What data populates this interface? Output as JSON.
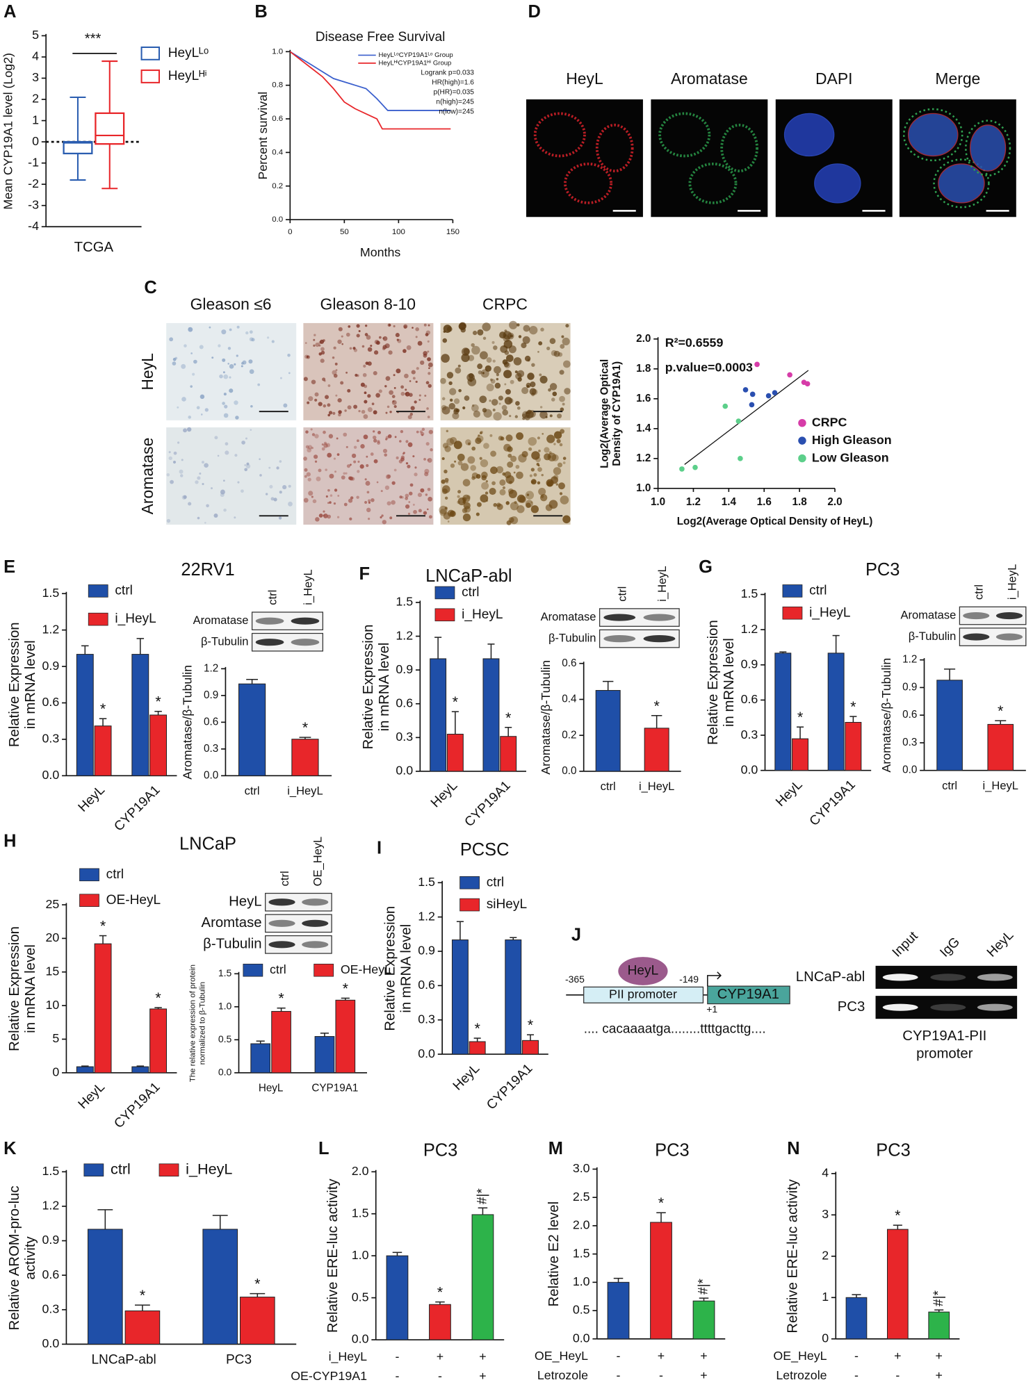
{
  "figure": {
    "C_images": {
      "panel": "C",
      "columns": [
        "Gleason ≤6",
        "Gleason 8-10",
        "CRPC"
      ],
      "rows": [
        "HeyL",
        "Aromatase"
      ]
    },
    "D": {
      "panel": "D",
      "labels": [
        "HeyL",
        "Aromatase",
        "DAPI",
        "Merge"
      ]
    },
    "blots": [
      {
        "lanes": [
          "ctrl",
          "i_HeyL"
        ],
        "bands": [
          "Aromatase",
          "β-Tubulin"
        ]
      },
      {
        "lanes": [
          "ctrl",
          "i_HeyL"
        ],
        "bands": [
          "Aromatase",
          "β-Tubulin"
        ]
      },
      {
        "lanes": [
          "ctrl",
          "i_HeyL"
        ],
        "bands": [
          "Aromatase",
          "β-Tubulin"
        ]
      },
      {
        "lanes": [
          "ctrl",
          "OE_HeyL"
        ],
        "bands": [
          "HeyL",
          "Aromtase",
          "β-Tubulin"
        ]
      }
    ],
    "J": {
      "panel": "J",
      "factor": "HeyL",
      "positions": [
        "-365",
        "-149",
        "+1"
      ],
      "promoter": "PII promoter",
      "gene": "CYP19A1",
      "sequence": ".... cacaaaatga........ttttgacttg....",
      "lanes": [
        "Input",
        "IgG",
        "HeyL"
      ],
      "cells": [
        "LNCaP-abl",
        "PC3"
      ],
      "caption": [
        "CYP19A1-PII",
        "promoter"
      ]
    }
  },
  "chart_data": [
    {
      "type": "box",
      "panel": "A",
      "ylabel": "Mean CYP19A1 level (Log2)",
      "categories": [
        "TCGA"
      ],
      "annotation": "***",
      "reference_line": 0,
      "ylim": [
        -4,
        5
      ],
      "yticks": [
        -4,
        -3,
        -2,
        -1,
        0,
        1,
        2,
        3,
        4,
        5
      ],
      "series": [
        {
          "name": "HeyLᴸᵒ",
          "color": "#2a5db0",
          "min": [
            -1.8
          ],
          "q1": [
            -0.55
          ],
          "median": [
            -0.05
          ],
          "q3": [
            0
          ],
          "max": [
            2.1
          ]
        },
        {
          "name": "HeyLᴴⁱ",
          "color": "#e8262a",
          "min": [
            -2.2
          ],
          "q1": [
            -0.1
          ],
          "median": [
            0.3
          ],
          "q3": [
            1.35
          ],
          "max": [
            3.8
          ]
        }
      ]
    },
    {
      "type": "line",
      "panel": "B",
      "title": "Disease Free Survival",
      "xlabel": "Months",
      "ylabel": "Percent survival",
      "xlim": [
        0,
        150
      ],
      "xticks": [
        0,
        50,
        100,
        150
      ],
      "ylim": [
        0,
        1
      ],
      "yticks": [
        {
          "value": 0,
          "label": "0.0"
        },
        0.2,
        0.4,
        0.6,
        0.8,
        {
          "value": 1,
          "label": "1.0"
        }
      ],
      "annotations": [
        "Logrank p=0.033",
        "HR(high)=1.6",
        "p(HR)=0.035",
        "n(high)=245",
        "n(low)=245"
      ],
      "series": [
        {
          "name": "HeyLᴸᵒCYP19A1ᴸᵒ Group",
          "color": "#3a5fcd",
          "x": [
            0,
            10,
            20,
            30,
            40,
            50,
            60,
            70,
            80,
            90,
            100,
            148
          ],
          "values": [
            1,
            0.96,
            0.92,
            0.88,
            0.84,
            0.82,
            0.8,
            0.78,
            0.72,
            0.65,
            0.65,
            0.65
          ]
        },
        {
          "name": "HeyLᴴⁱCYP19A1ᴴⁱ Group",
          "color": "#e8262a",
          "x": [
            0,
            10,
            20,
            30,
            40,
            50,
            60,
            70,
            80,
            85,
            90,
            100,
            148
          ],
          "values": [
            1,
            0.95,
            0.9,
            0.85,
            0.78,
            0.7,
            0.66,
            0.63,
            0.6,
            0.54,
            0.54,
            0.54,
            0.54
          ]
        }
      ]
    },
    {
      "type": "scatter",
      "annotations": [
        "R²=0.6559",
        "p.value=0.0003"
      ],
      "xlabel": "Log2(Average Optical Density of HeyL)",
      "ylabel": [
        "Log2(Average Optical",
        "Density of CYP19A1)"
      ],
      "xlim": [
        1,
        2
      ],
      "ylim": [
        1,
        2
      ],
      "xticks": [
        {
          "value": 1,
          "label": "1.0"
        },
        1.2,
        1.4,
        1.6,
        1.8,
        {
          "value": 2,
          "label": "2.0"
        }
      ],
      "yticks": [
        {
          "value": 1,
          "label": "1.0"
        },
        1.2,
        1.4,
        1.6,
        1.8,
        {
          "value": 2,
          "label": "2.0"
        }
      ],
      "trendline": {
        "x": [
          1.15,
          1.85
        ],
        "values": [
          1.16,
          1.79
        ]
      },
      "series": [
        {
          "name": "CRPC",
          "color": "#d63ca8",
          "x": [
            1.56,
            1.745,
            1.825,
            1.845
          ],
          "values": [
            1.83,
            1.76,
            1.71,
            1.7
          ]
        },
        {
          "name": "High Gleason",
          "color": "#2a4fb0",
          "x": [
            1.495,
            1.535,
            1.625,
            1.66,
            1.53
          ],
          "values": [
            1.66,
            1.63,
            1.62,
            1.64,
            1.56
          ]
        },
        {
          "name": "Low Gleason",
          "color": "#5ccf8a",
          "x": [
            1.38,
            1.455,
            1.465,
            1.21,
            1.135
          ],
          "values": [
            1.55,
            1.45,
            1.2,
            1.14,
            1.13
          ]
        }
      ]
    },
    {
      "type": "bar",
      "panel": "E",
      "title": "22RV1",
      "ylabel": [
        "Relative Expression",
        "in mRNA level"
      ],
      "categories": [
        "HeyL",
        "CYP19A1"
      ],
      "ylim": [
        0,
        1.5
      ],
      "yticks": [
        {
          "value": 0,
          "label": "0.0"
        },
        0.3,
        0.6,
        0.9,
        1.2,
        1.5
      ],
      "series": [
        {
          "name": "ctrl",
          "color": "#1f4fa8",
          "values": [
            1,
            1
          ],
          "errors": [
            0.07,
            0.13
          ]
        },
        {
          "name": "i_HeyL",
          "color": "#e8262a",
          "values": [
            0.41,
            0.5
          ],
          "errors": [
            0.06,
            0.03
          ],
          "sig": [
            "*",
            "*"
          ]
        }
      ]
    },
    {
      "type": "bar",
      "ylabel": "Aromatase/β-Tubulin",
      "categories": [
        "ctrl",
        "i_HeyL"
      ],
      "ylim": [
        0,
        1.2
      ],
      "yticks": [
        {
          "value": 0,
          "label": "0.0"
        },
        0.3,
        0.6,
        0.9,
        1.2
      ],
      "series": [
        {
          "colors": [
            "#1f4fa8",
            "#e8262a"
          ],
          "values": [
            1.03,
            0.41
          ],
          "errors": [
            0.05,
            0.02
          ],
          "sig": [
            null,
            "*"
          ]
        }
      ]
    },
    {
      "type": "bar",
      "panel": "F",
      "title": "LNCaP-abl",
      "ylabel": [
        "Relative Expression",
        "in mRNA level"
      ],
      "categories": [
        "HeyL",
        "CYP19A1"
      ],
      "ylim": [
        0,
        1.5
      ],
      "yticks": [
        {
          "value": 0,
          "label": "0.0"
        },
        0.3,
        0.6,
        0.9,
        1.2,
        1.5
      ],
      "series": [
        {
          "name": "ctrl",
          "color": "#1f4fa8",
          "values": [
            1,
            1
          ],
          "errors": [
            0.19,
            0.13
          ]
        },
        {
          "name": "i_HeyL",
          "color": "#e8262a",
          "values": [
            0.33,
            0.31
          ],
          "errors": [
            0.2,
            0.08
          ],
          "sig": [
            "*",
            "*"
          ]
        }
      ]
    },
    {
      "type": "bar",
      "ylabel": "Aromatase/β-Tubulin",
      "categories": [
        "ctrl",
        "i_HeyL"
      ],
      "ylim": [
        0,
        0.6
      ],
      "yticks": [
        {
          "value": 0,
          "label": "0.0"
        },
        0.2,
        0.4,
        0.6
      ],
      "series": [
        {
          "colors": [
            "#1f4fa8",
            "#e8262a"
          ],
          "values": [
            0.45,
            0.24
          ],
          "errors": [
            0.05,
            0.07
          ],
          "sig": [
            null,
            "*"
          ]
        }
      ]
    },
    {
      "type": "bar",
      "panel": "G",
      "title": "PC3",
      "ylabel": [
        "Relative Expression",
        "in mRNA level"
      ],
      "categories": [
        "HeyL",
        "CYP19A1"
      ],
      "ylim": [
        0,
        1.5
      ],
      "yticks": [
        {
          "value": 0,
          "label": "0.0"
        },
        0.3,
        0.6,
        0.9,
        1.2,
        1.5
      ],
      "series": [
        {
          "name": "ctrl",
          "color": "#1f4fa8",
          "values": [
            1,
            1
          ],
          "errors": [
            0.01,
            0.15
          ]
        },
        {
          "name": "i_HeyL",
          "color": "#e8262a",
          "values": [
            0.27,
            0.41
          ],
          "errors": [
            0.1,
            0.05
          ],
          "sig": [
            "*",
            "*"
          ]
        }
      ]
    },
    {
      "type": "bar",
      "ylabel": "Aromatase/β-Tubulin",
      "categories": [
        "ctrl",
        "i_HeyL"
      ],
      "ylim": [
        0,
        1.2
      ],
      "yticks": [
        {
          "value": 0,
          "label": "0.0"
        },
        0.3,
        0.6,
        0.9,
        1.2
      ],
      "series": [
        {
          "colors": [
            "#1f4fa8",
            "#e8262a"
          ],
          "values": [
            0.98,
            0.5
          ],
          "errors": [
            0.12,
            0.04
          ],
          "sig": [
            null,
            "*"
          ]
        }
      ]
    },
    {
      "type": "bar",
      "panel": "H",
      "title": "LNCaP",
      "ylabel": [
        "Relative Expression",
        "in mRNA level"
      ],
      "categories": [
        "HeyL",
        "CYP19A1"
      ],
      "ylim": [
        0,
        25
      ],
      "yticks": [
        0,
        5,
        10,
        15,
        20,
        25
      ],
      "series": [
        {
          "name": "ctrl",
          "color": "#1f4fa8",
          "values": [
            0.9,
            0.9
          ],
          "errors": [
            0.1,
            0.1
          ]
        },
        {
          "name": "OE-HeyL",
          "color": "#e8262a",
          "values": [
            19.2,
            9.5
          ],
          "errors": [
            1.2,
            0.2
          ],
          "sig": [
            "*",
            "*"
          ]
        }
      ]
    },
    {
      "type": "bar",
      "ylabel": [
        "The relative expression of protein",
        "normalized to β-Tubulin"
      ],
      "categories": [
        "HeyL",
        "CYP19A1"
      ],
      "ylim": [
        0,
        1.5
      ],
      "yticks": [
        {
          "value": 0,
          "label": "0.0"
        },
        0.5,
        {
          "value": 1,
          "label": "1.0"
        },
        1.5
      ],
      "series": [
        {
          "name": "ctrl",
          "color": "#1f4fa8",
          "values": [
            0.44,
            0.55
          ],
          "errors": [
            0.04,
            0.05
          ]
        },
        {
          "name": "OE-HeyL",
          "color": "#e8262a",
          "values": [
            0.93,
            1.1
          ],
          "errors": [
            0.05,
            0.03
          ],
          "sig": [
            "*",
            "*"
          ]
        }
      ]
    },
    {
      "type": "bar",
      "panel": "I",
      "title": "PCSC",
      "ylabel": [
        "Relative Expression",
        "in mRNA level"
      ],
      "categories": [
        "HeyL",
        "CYP19A1"
      ],
      "ylim": [
        0,
        1.5
      ],
      "yticks": [
        {
          "value": 0,
          "label": "0.0"
        },
        0.3,
        0.6,
        0.9,
        1.2,
        1.5
      ],
      "series": [
        {
          "name": "ctrl",
          "color": "#1f4fa8",
          "values": [
            1,
            1
          ],
          "errors": [
            0.16,
            0.02
          ]
        },
        {
          "name": "siHeyL",
          "color": "#e8262a",
          "values": [
            0.11,
            0.12
          ],
          "errors": [
            0.03,
            0.05
          ],
          "sig": [
            "*",
            "*"
          ]
        }
      ]
    },
    {
      "type": "bar",
      "panel": "K",
      "ylabel": [
        "Relative AROM-pro-luc",
        "activity"
      ],
      "categories": [
        "LNCaP-abl",
        "PC3"
      ],
      "ylim": [
        0,
        1.5
      ],
      "yticks": [
        {
          "value": 0,
          "label": "0.0"
        },
        0.3,
        0.6,
        0.9,
        1.2,
        1.5
      ],
      "series": [
        {
          "name": "ctrl",
          "color": "#1f4fa8",
          "values": [
            1,
            1
          ],
          "errors": [
            0.17,
            0.12
          ]
        },
        {
          "name": "i_HeyL",
          "color": "#e8262a",
          "values": [
            0.29,
            0.41
          ],
          "errors": [
            0.05,
            0.03
          ],
          "sig": [
            "*",
            "*"
          ]
        }
      ]
    },
    {
      "type": "bar",
      "panel": "L",
      "title": "PC3",
      "ylabel": "Relative ERE-luc activity",
      "ylim": [
        0,
        2
      ],
      "yticks": [
        {
          "value": 0,
          "label": "0.0"
        },
        0.5,
        {
          "value": 1,
          "label": "1.0"
        },
        1.5,
        {
          "value": 2,
          "label": "2.0"
        }
      ],
      "series": [
        {
          "colors": [
            "#1f4fa8",
            "#e8262a",
            "#2db34a"
          ],
          "values": [
            1,
            0.42,
            1.49
          ],
          "errors": [
            0.04,
            0.03,
            0.08
          ],
          "sig": [
            null,
            "*",
            "#|*"
          ]
        }
      ],
      "rows": [
        {
          "label": "i_HeyL",
          "marks": [
            "-",
            "+",
            "+"
          ]
        },
        {
          "label": "OE-CYP19A1",
          "marks": [
            "-",
            "-",
            "+"
          ]
        }
      ]
    },
    {
      "type": "bar",
      "panel": "M",
      "title": "PC3",
      "ylabel": "Relative E2 level",
      "ylim": [
        0,
        3
      ],
      "yticks": [
        {
          "value": 0,
          "label": "0.0"
        },
        0.5,
        {
          "value": 1,
          "label": "1.0"
        },
        1.5,
        {
          "value": 2,
          "label": "2.0"
        },
        2.5,
        {
          "value": 3,
          "label": "3.0"
        }
      ],
      "series": [
        {
          "colors": [
            "#1f4fa8",
            "#e8262a",
            "#2db34a"
          ],
          "values": [
            1,
            2.06,
            0.67
          ],
          "errors": [
            0.07,
            0.17,
            0.05
          ],
          "sig": [
            null,
            "*",
            "#|*"
          ]
        }
      ],
      "rows": [
        {
          "label": "OE_HeyL",
          "marks": [
            "-",
            "+",
            "+"
          ]
        },
        {
          "label": "Letrozole",
          "marks": [
            "-",
            "-",
            "+"
          ]
        }
      ]
    },
    {
      "type": "bar",
      "panel": "N",
      "title": "PC3",
      "ylabel": "Relative ERE-luc activity",
      "ylim": [
        0,
        4
      ],
      "yticks": [
        0,
        1,
        2,
        3,
        4
      ],
      "series": [
        {
          "colors": [
            "#1f4fa8",
            "#e8262a",
            "#2db34a"
          ],
          "values": [
            1,
            2.65,
            0.65
          ],
          "errors": [
            0.07,
            0.1,
            0.05
          ],
          "sig": [
            null,
            "*",
            "#|*"
          ]
        }
      ],
      "rows": [
        {
          "label": "OE_HeyL",
          "marks": [
            "-",
            "+",
            "+"
          ]
        },
        {
          "label": "Letrozole",
          "marks": [
            "-",
            "-",
            "+"
          ]
        }
      ]
    }
  ]
}
